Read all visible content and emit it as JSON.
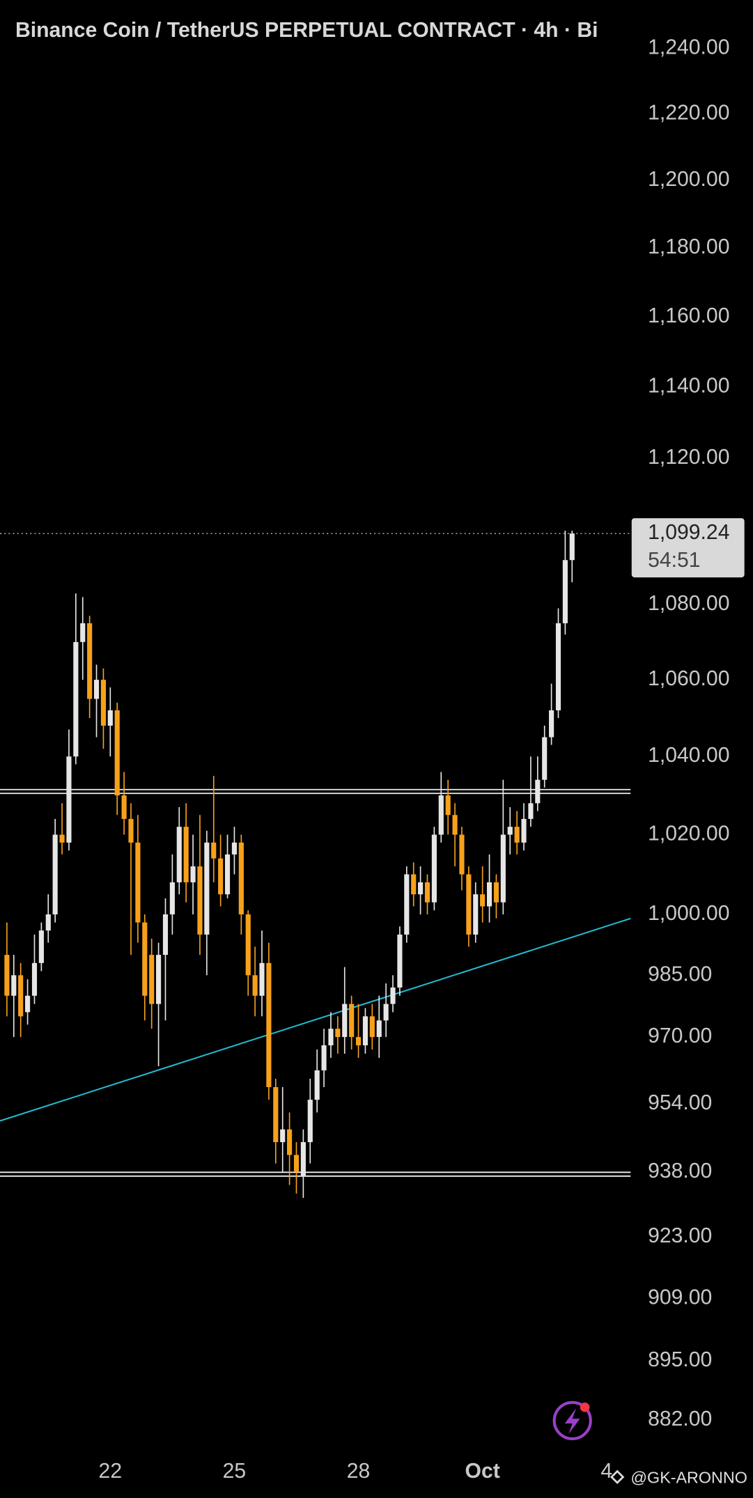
{
  "chart_data": {
    "type": "candlestick",
    "title": "Binance Coin / TetherUS PERPETUAL CONTRACT · 4h · Bi",
    "log_scale": true,
    "up_color": "#e6e6e6",
    "down_color": "#f7a11a",
    "open": [
      990,
      980,
      985,
      976,
      980,
      988,
      996,
      1000,
      1020,
      1018,
      1040,
      1070,
      1075,
      1055,
      1060,
      1048,
      1052,
      1030,
      1024,
      1018,
      998,
      990,
      978,
      990,
      1000,
      1008,
      1022,
      1008,
      1012,
      995,
      1018,
      1014,
      1005,
      1015,
      1018,
      1000,
      985,
      980,
      988,
      958,
      945,
      948,
      942,
      937,
      945,
      955,
      962,
      968,
      972,
      970,
      978,
      970,
      968,
      975,
      970,
      974,
      978,
      982,
      995,
      1010,
      1005,
      1008,
      1003,
      1020,
      1030,
      1025,
      1020,
      1010,
      995,
      1005,
      1002,
      1008,
      1003,
      1020,
      1022,
      1018,
      1024,
      1028,
      1034,
      1045,
      1052,
      1075,
      1092
    ],
    "high": [
      998,
      990,
      988,
      984,
      995,
      998,
      1005,
      1024,
      1028,
      1047,
      1083,
      1082,
      1077,
      1064,
      1063,
      1058,
      1054,
      1036,
      1028,
      1025,
      1000,
      994,
      993,
      1004,
      1015,
      1027,
      1028,
      1020,
      1025,
      1021,
      1035,
      1020,
      1020,
      1022,
      1020,
      1001,
      992,
      996,
      993,
      960,
      958,
      952,
      945,
      948,
      960,
      967,
      972,
      976,
      975,
      987,
      980,
      978,
      977,
      978,
      980,
      983,
      985,
      997,
      1012,
      1013,
      1012,
      1010,
      1022,
      1036,
      1034,
      1028,
      1022,
      1012,
      1008,
      1012,
      1015,
      1010,
      1034,
      1027,
      1026,
      1028,
      1040,
      1040,
      1048,
      1059,
      1079,
      1100,
      1100
    ],
    "low": [
      975,
      970,
      970,
      973,
      978,
      986,
      993,
      998,
      1015,
      1016,
      1038,
      1060,
      1050,
      1045,
      1042,
      1040,
      1025,
      1020,
      990,
      993,
      974,
      972,
      963,
      974,
      995,
      1005,
      1003,
      1000,
      990,
      985,
      1008,
      1002,
      1004,
      1010,
      995,
      980,
      975,
      975,
      955,
      940,
      938,
      935,
      933,
      932,
      940,
      952,
      958,
      965,
      966,
      966,
      967,
      965,
      966,
      967,
      965,
      970,
      976,
      980,
      993,
      1002,
      1000,
      1000,
      1001,
      1018,
      1020,
      1012,
      1006,
      992,
      993,
      998,
      998,
      999,
      1000,
      1015,
      1015,
      1016,
      1022,
      1026,
      1032,
      1043,
      1050,
      1072,
      1086
    ],
    "close": [
      980,
      985,
      975,
      980,
      988,
      996,
      1000,
      1020,
      1018,
      1040,
      1070,
      1075,
      1055,
      1060,
      1048,
      1052,
      1030,
      1024,
      1018,
      998,
      980,
      978,
      990,
      1000,
      1008,
      1022,
      1008,
      1012,
      995,
      1018,
      1014,
      1005,
      1015,
      1018,
      1000,
      985,
      980,
      988,
      958,
      945,
      948,
      942,
      938,
      945,
      955,
      962,
      968,
      972,
      970,
      978,
      970,
      968,
      975,
      970,
      974,
      978,
      982,
      995,
      1010,
      1005,
      1008,
      1003,
      1020,
      1030,
      1025,
      1020,
      1010,
      995,
      1005,
      1002,
      1008,
      1003,
      1020,
      1022,
      1018,
      1024,
      1028,
      1034,
      1045,
      1052,
      1075,
      1092,
      1099.24
    ],
    "xlim": [
      -1,
      90.5
    ],
    "xticks": [
      {
        "value": 15,
        "label": "22"
      },
      {
        "value": 33,
        "label": "25"
      },
      {
        "value": 51,
        "label": "28"
      },
      {
        "value": 69,
        "label": "Oct"
      },
      {
        "value": 87,
        "label": "4"
      }
    ],
    "ylim": [
      876,
      1255
    ],
    "yticks": [
      {
        "value": 1240,
        "label": "1,240.00"
      },
      {
        "value": 1220,
        "label": "1,220.00"
      },
      {
        "value": 1200,
        "label": "1,200.00"
      },
      {
        "value": 1180,
        "label": "1,180.00"
      },
      {
        "value": 1160,
        "label": "1,160.00"
      },
      {
        "value": 1140,
        "label": "1,140.00"
      },
      {
        "value": 1120,
        "label": "1,120.00"
      },
      {
        "value": 1080,
        "label": "1,080.00"
      },
      {
        "value": 1060,
        "label": "1,060.00"
      },
      {
        "value": 1040,
        "label": "1,040.00"
      },
      {
        "value": 1020,
        "label": "1,020.00"
      },
      {
        "value": 1000,
        "label": "1,000.00"
      },
      {
        "value": 985,
        "label": "985.00"
      },
      {
        "value": 970,
        "label": "970.00"
      },
      {
        "value": 954,
        "label": "954.00"
      },
      {
        "value": 938,
        "label": "938.00"
      },
      {
        "value": 923,
        "label": "923.00"
      },
      {
        "value": 909,
        "label": "909.00"
      },
      {
        "value": 895,
        "label": "895.00"
      },
      {
        "value": 882,
        "label": "882.00"
      }
    ],
    "last_price": {
      "value": 1099.24,
      "label": "1,099.24"
    },
    "countdown": "54:51",
    "horizontal_levels": [
      1031,
      937.5
    ],
    "trendline": {
      "x": [
        -1,
        90.5
      ],
      "y": [
        950,
        999
      ],
      "color": "#22b8d0"
    },
    "watermark": "@GK-ARONNO"
  }
}
